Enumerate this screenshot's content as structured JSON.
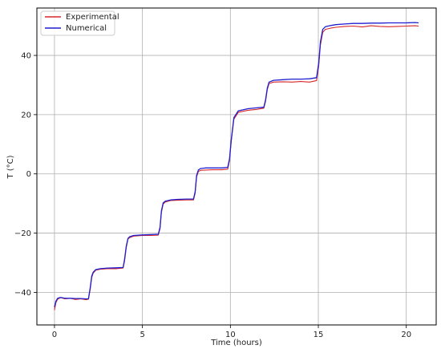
{
  "chart_data": {
    "type": "line",
    "title": "",
    "xlabel": "Time (hours)",
    "ylabel": "T (°C)",
    "xlim": [
      -1.0,
      21.7
    ],
    "ylim": [
      -51.0,
      56.0
    ],
    "xticks": [
      0,
      5,
      10,
      15,
      20
    ],
    "yticks": [
      -40,
      -20,
      0,
      20,
      40
    ],
    "grid": true,
    "legend_position": "top-left",
    "series": [
      {
        "name": "Experimental",
        "color": "#d62728",
        "x": [
          0,
          0.08,
          0.18,
          0.35,
          0.6,
          0.9,
          1.2,
          1.5,
          1.8,
          1.93,
          2.03,
          2.12,
          2.2,
          2.35,
          2.6,
          3.0,
          3.5,
          3.9,
          3.98,
          4.08,
          4.18,
          4.28,
          4.5,
          5.0,
          5.5,
          5.9,
          6.0,
          6.08,
          6.18,
          6.3,
          6.6,
          7.0,
          7.5,
          7.9,
          8.0,
          8.08,
          8.18,
          8.3,
          8.6,
          9.0,
          9.5,
          9.85,
          9.95,
          10.05,
          10.2,
          10.45,
          11.0,
          11.5,
          11.9,
          12.0,
          12.1,
          12.2,
          12.45,
          13.0,
          13.5,
          14.0,
          14.5,
          14.9,
          15.02,
          15.12,
          15.25,
          15.4,
          15.7,
          16.0,
          16.5,
          17.0,
          17.5,
          18.0,
          18.5,
          19.0,
          19.5,
          20.0,
          20.5,
          20.7
        ],
        "y": [
          -46,
          -43.5,
          -42.3,
          -41.8,
          -42.2,
          -42.0,
          -42.4,
          -42.2,
          -42.5,
          -42.3,
          -39.0,
          -35.0,
          -33.5,
          -32.5,
          -32.2,
          -32.0,
          -32.0,
          -31.8,
          -29.5,
          -25.0,
          -22.0,
          -21.5,
          -21.0,
          -20.8,
          -20.8,
          -20.7,
          -18.5,
          -13.0,
          -10.2,
          -9.5,
          -9.0,
          -8.9,
          -8.8,
          -8.8,
          -6.5,
          -1.0,
          0.8,
          1.2,
          1.3,
          1.4,
          1.4,
          1.6,
          4.5,
          11.0,
          18.5,
          20.8,
          21.5,
          21.8,
          22.2,
          24.5,
          28.5,
          30.5,
          31.0,
          31.1,
          31.0,
          31.2,
          31.0,
          31.5,
          36.5,
          43.5,
          47.8,
          48.8,
          49.2,
          49.5,
          49.8,
          49.9,
          49.6,
          50.0,
          49.8,
          49.7,
          49.8,
          49.9,
          50.0,
          49.9
        ]
      },
      {
        "name": "Numerical",
        "color": "#1f1fd1",
        "x": [
          0,
          0.08,
          0.18,
          0.35,
          0.6,
          0.9,
          1.2,
          1.5,
          1.8,
          1.93,
          2.03,
          2.12,
          2.2,
          2.35,
          2.6,
          3.0,
          3.5,
          3.9,
          3.98,
          4.08,
          4.18,
          4.28,
          4.5,
          5.0,
          5.5,
          5.9,
          6.0,
          6.08,
          6.18,
          6.3,
          6.6,
          7.0,
          7.5,
          7.9,
          8.0,
          8.08,
          8.18,
          8.3,
          8.6,
          9.0,
          9.5,
          9.85,
          9.95,
          10.05,
          10.2,
          10.45,
          11.0,
          11.5,
          11.9,
          12.0,
          12.1,
          12.2,
          12.45,
          13.0,
          13.5,
          14.0,
          14.5,
          14.9,
          15.02,
          15.12,
          15.25,
          15.4,
          15.7,
          16.0,
          16.5,
          17.0,
          17.5,
          18.0,
          18.5,
          19.0,
          19.5,
          20.0,
          20.5,
          20.7
        ],
        "y": [
          -45,
          -43.0,
          -42.0,
          -41.7,
          -42.0,
          -42.0,
          -42.1,
          -42.1,
          -42.2,
          -42.2,
          -38.5,
          -34.5,
          -33.2,
          -32.3,
          -32.0,
          -31.8,
          -31.7,
          -31.6,
          -29.0,
          -24.5,
          -21.8,
          -21.2,
          -20.8,
          -20.6,
          -20.5,
          -20.4,
          -18.0,
          -12.5,
          -9.8,
          -9.2,
          -8.8,
          -8.6,
          -8.5,
          -8.5,
          -6.0,
          -0.5,
          1.3,
          1.8,
          2.0,
          2.0,
          2.0,
          2.2,
          5.0,
          11.5,
          19.0,
          21.3,
          22.0,
          22.3,
          22.5,
          25.0,
          29.0,
          31.0,
          31.6,
          31.8,
          32.0,
          32.0,
          32.1,
          32.5,
          37.5,
          44.5,
          48.8,
          49.7,
          50.1,
          50.4,
          50.6,
          50.8,
          50.8,
          50.9,
          50.9,
          51.0,
          51.0,
          51.0,
          51.1,
          51.0
        ]
      }
    ]
  }
}
